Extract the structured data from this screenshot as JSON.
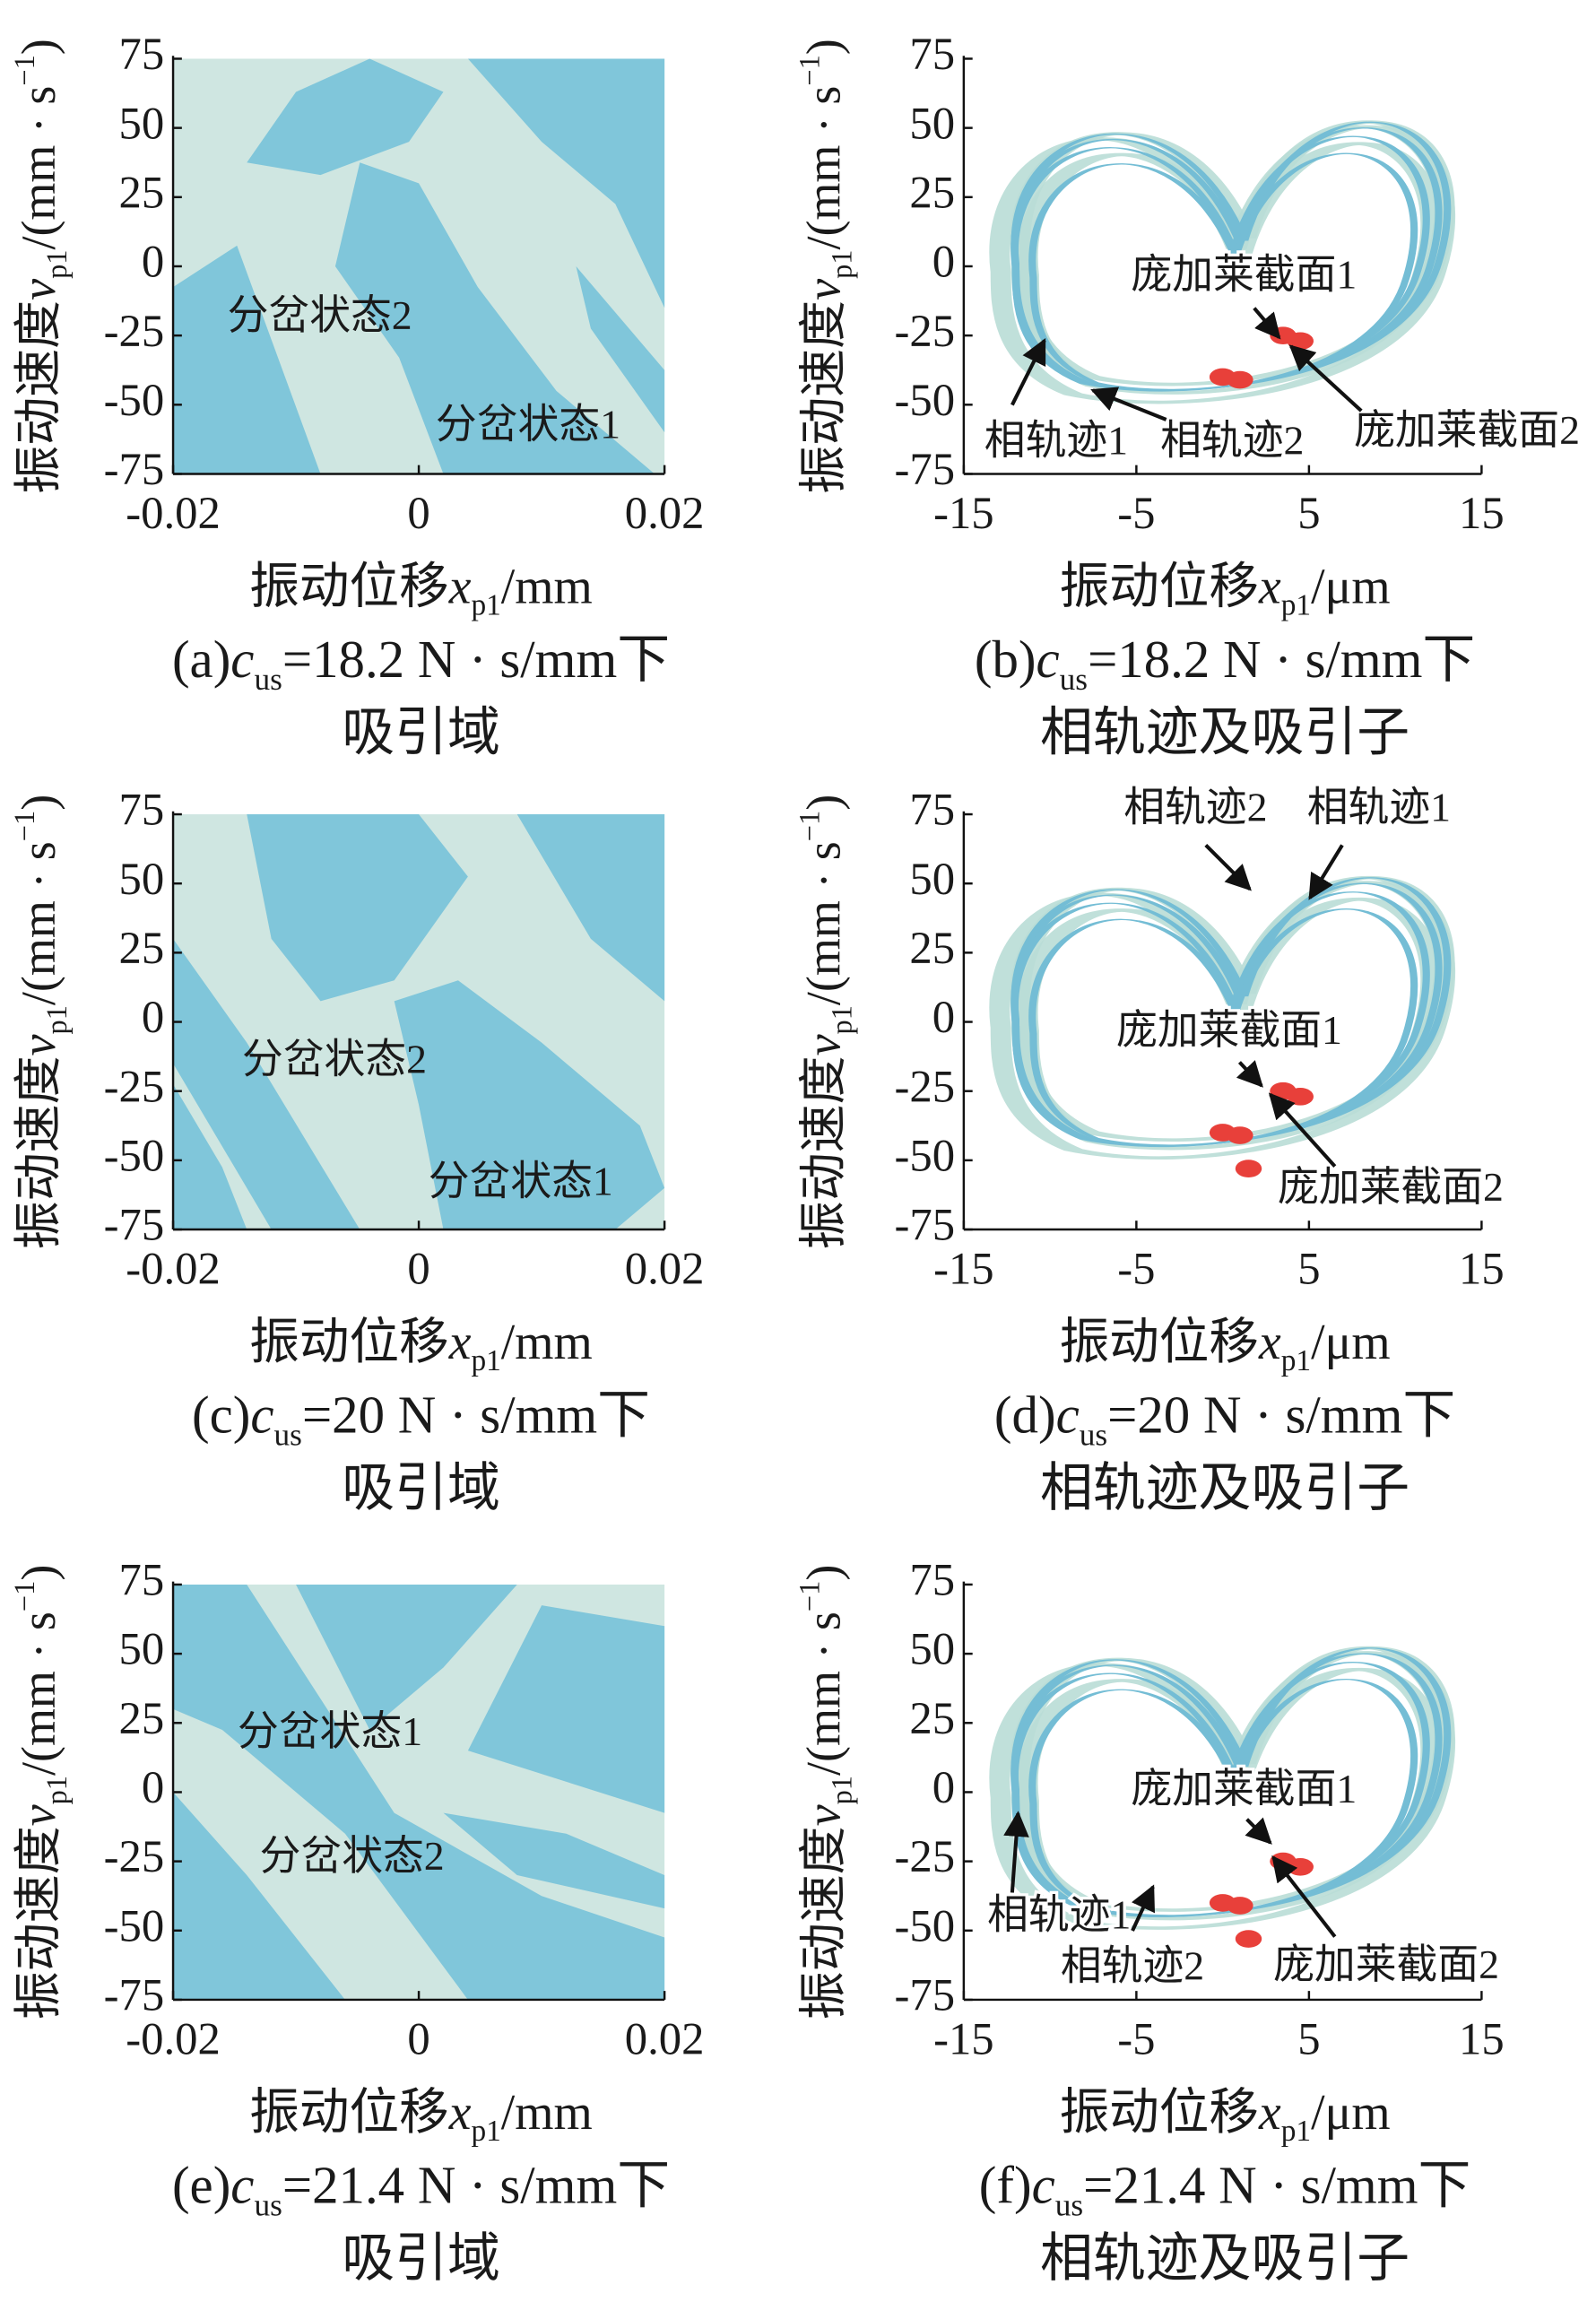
{
  "chart_data": [
    {
      "type": "heatmap",
      "xlim": [
        -0.02,
        0.02
      ],
      "xticks": [
        -0.02,
        0,
        0.02
      ],
      "ylim": [
        -75,
        75
      ],
      "yticks": [
        -75,
        -50,
        -25,
        0,
        25,
        50,
        75
      ],
      "ylabel": [
        "振动速度",
        "v",
        "p1",
        "/(mm · s",
        "−1",
        ")"
      ],
      "xlabel": [
        "振动位移",
        "x",
        "p1",
        "/mm"
      ],
      "caption": [
        "(a)",
        "c",
        "us",
        "=18.2 N · s/mm下",
        "吸引域"
      ],
      "annotations": [
        "分岔状态2",
        "分岔状态1"
      ]
    },
    {
      "type": "line",
      "xlim": [
        -15,
        15
      ],
      "xticks": [
        -15,
        -5,
        5,
        15
      ],
      "ylim": [
        -75,
        75
      ],
      "yticks": [
        -75,
        -50,
        -25,
        0,
        25,
        50,
        75
      ],
      "ylabel": [
        "振动速度",
        "v",
        "p1",
        "/(mm · s",
        "−1",
        ")"
      ],
      "xlabel": [
        "振动位移",
        "x",
        "p1",
        "/μm"
      ],
      "caption": [
        "(b)",
        "c",
        "us",
        "=18.2 N · s/mm下",
        "相轨迹及吸引子"
      ],
      "annotations": [
        "庞加莱截面1",
        "庞加莱截面2",
        "相轨迹1",
        "相轨迹2"
      ]
    },
    {
      "type": "heatmap",
      "xlim": [
        -0.02,
        0.02
      ],
      "xticks": [
        -0.02,
        0,
        0.02
      ],
      "ylim": [
        -75,
        75
      ],
      "yticks": [
        -75,
        -50,
        -25,
        0,
        25,
        50,
        75
      ],
      "ylabel": [
        "振动速度",
        "v",
        "p1",
        "/(mm · s",
        "−1",
        ")"
      ],
      "xlabel": [
        "振动位移",
        "x",
        "p1",
        "/mm"
      ],
      "caption": [
        "(c)",
        "c",
        "us",
        "=20 N · s/mm下",
        "吸引域"
      ],
      "annotations": [
        "分岔状态2",
        "分岔状态1"
      ]
    },
    {
      "type": "line",
      "xlim": [
        -15,
        15
      ],
      "xticks": [
        -15,
        -5,
        5,
        15
      ],
      "ylim": [
        -75,
        75
      ],
      "yticks": [
        -75,
        -50,
        -25,
        0,
        25,
        50,
        75
      ],
      "ylabel": [
        "振动速度",
        "v",
        "p1",
        "/(mm · s",
        "−1",
        ")"
      ],
      "xlabel": [
        "振动位移",
        "x",
        "p1",
        "/μm"
      ],
      "caption": [
        "(d)",
        "c",
        "us",
        "=20 N · s/mm下",
        "相轨迹及吸引子"
      ],
      "annotations": [
        "相轨迹2",
        "相轨迹1",
        "庞加莱截面1",
        "庞加莱截面2"
      ]
    },
    {
      "type": "heatmap",
      "xlim": [
        -0.02,
        0.02
      ],
      "xticks": [
        -0.02,
        0,
        0.02
      ],
      "ylim": [
        -75,
        75
      ],
      "yticks": [
        -75,
        -50,
        -25,
        0,
        25,
        50,
        75
      ],
      "ylabel": [
        "振动速度",
        "v",
        "p1",
        "/(mm · s",
        "−1",
        ")"
      ],
      "xlabel": [
        "振动位移",
        "x",
        "p1",
        "/mm"
      ],
      "caption": [
        "(e)",
        "c",
        "us",
        "=21.4 N · s/mm下",
        "吸引域"
      ],
      "annotations": [
        "分岔状态1",
        "分岔状态2"
      ]
    },
    {
      "type": "line",
      "xlim": [
        -15,
        15
      ],
      "xticks": [
        -15,
        -5,
        5,
        15
      ],
      "ylim": [
        -75,
        75
      ],
      "yticks": [
        -75,
        -50,
        -25,
        0,
        25,
        50,
        75
      ],
      "ylabel": [
        "振动速度",
        "v",
        "p1",
        "/(mm · s",
        "−1",
        ")"
      ],
      "xlabel": [
        "振动位移",
        "x",
        "p1",
        "/μm"
      ],
      "caption": [
        "(f)",
        "c",
        "us",
        "=21.4 N · s/mm下",
        "相轨迹及吸引子"
      ],
      "annotations": [
        "庞加莱截面1",
        "庞加莱截面2",
        "相轨迹1",
        "相轨迹2"
      ]
    }
  ]
}
